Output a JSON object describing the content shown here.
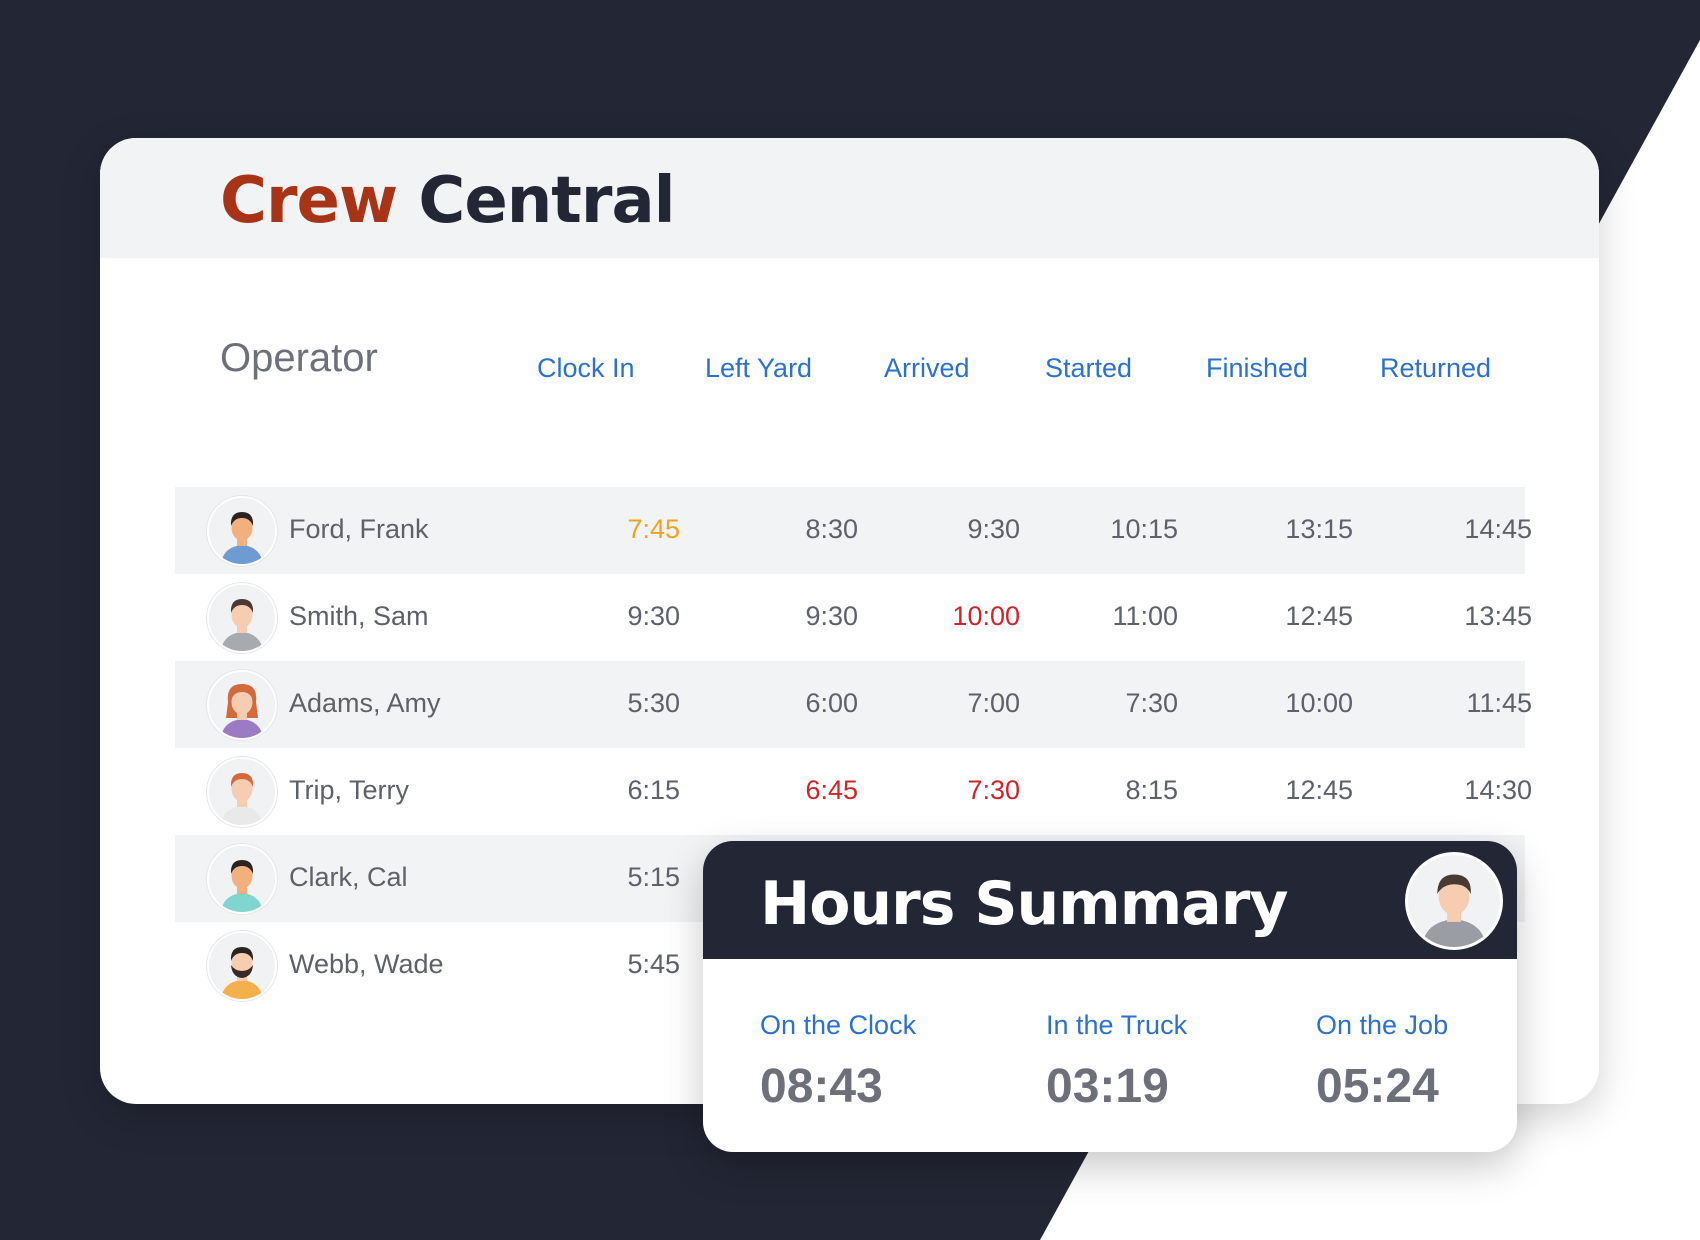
{
  "brand": {
    "word1": "Crew",
    "word2": "Central"
  },
  "colors": {
    "brand_red": "#a83418",
    "navy": "#232634",
    "accent_blue": "#2d72c8",
    "late_red": "#d0242b",
    "early_orange": "#f0a31c"
  },
  "table": {
    "operator_header": "Operator",
    "columns": [
      "Clock In",
      "Left Yard",
      "Arrived",
      "Started",
      "Finished",
      "Returned"
    ],
    "rows": [
      {
        "name": "Ford, Frank",
        "avatar": "man-short-hair-blue-shirt-icon",
        "times": [
          "7:45",
          "8:30",
          "9:30",
          "10:15",
          "13:15",
          "14:45"
        ],
        "flags": [
          "early",
          "",
          "",
          "",
          "",
          ""
        ]
      },
      {
        "name": "Smith, Sam",
        "avatar": "man-gray-shirt-icon",
        "times": [
          "9:30",
          "9:30",
          "10:00",
          "11:00",
          "12:45",
          "13:45"
        ],
        "flags": [
          "",
          "",
          "late",
          "",
          "",
          ""
        ]
      },
      {
        "name": "Adams, Amy",
        "avatar": "woman-purple-shirt-icon",
        "times": [
          "5:30",
          "6:00",
          "7:00",
          "7:30",
          "10:00",
          "11:45"
        ],
        "flags": [
          "",
          "",
          "",
          "",
          "",
          ""
        ]
      },
      {
        "name": "Trip, Terry",
        "avatar": "man-red-hair-icon",
        "times": [
          "6:15",
          "6:45",
          "7:30",
          "8:15",
          "12:45",
          "14:30"
        ],
        "flags": [
          "",
          "late",
          "late",
          "",
          "",
          ""
        ]
      },
      {
        "name": "Clark, Cal",
        "avatar": "man-teal-shirt-icon",
        "times": [
          "5:15"
        ],
        "flags": [
          ""
        ]
      },
      {
        "name": "Webb, Wade",
        "avatar": "man-beard-orange-shirt-icon",
        "times": [
          "5:45"
        ],
        "flags": [
          ""
        ]
      }
    ]
  },
  "summary": {
    "title": "Hours Summary",
    "avatar": "man-gray-shirt-icon",
    "stats": [
      {
        "label": "On the Clock",
        "value": "08:43"
      },
      {
        "label": "In the Truck",
        "value": "03:19"
      },
      {
        "label": "On the Job",
        "value": "05:24"
      }
    ]
  }
}
